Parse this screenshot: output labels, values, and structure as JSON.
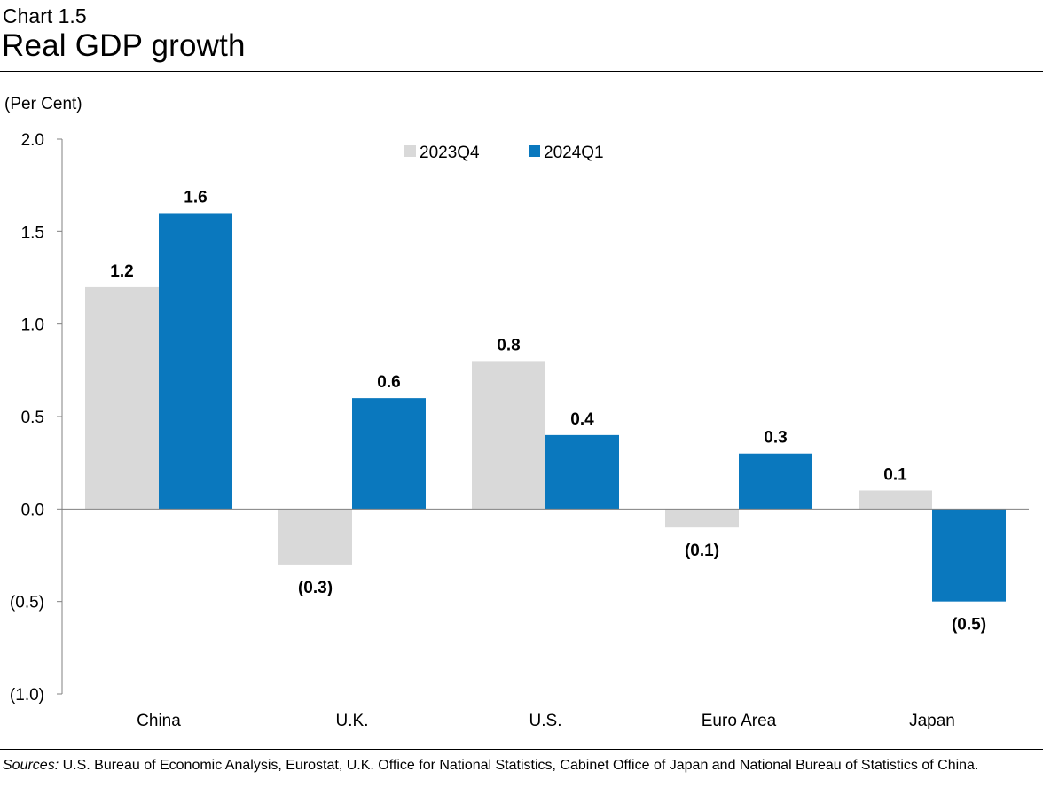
{
  "header": {
    "chart_label": "Chart 1.5",
    "title": "Real GDP growth"
  },
  "footer": {
    "sources_prefix": "Sources:",
    "sources_text": " U.S. Bureau of Economic Analysis, Eurostat, U.K. Office for National Statistics, Cabinet Office of Japan and National Bureau of Statistics of China."
  },
  "chart_data": {
    "type": "bar",
    "title": "Real GDP growth",
    "ylabel": "(Per Cent)",
    "xlabel": "",
    "categories": [
      "China",
      "U.K.",
      "U.S.",
      "Euro Area",
      "Japan"
    ],
    "series": [
      {
        "name": "2023Q4",
        "color": "#d9d9d9",
        "values": [
          1.2,
          -0.3,
          0.8,
          -0.1,
          0.1
        ],
        "labels": [
          "1.2",
          "(0.3)",
          "0.8",
          "(0.1)",
          "0.1"
        ]
      },
      {
        "name": "2024Q1",
        "color": "#0a78be",
        "values": [
          1.6,
          0.6,
          0.4,
          0.3,
          -0.5
        ],
        "labels": [
          "1.6",
          "0.6",
          "0.4",
          "0.3",
          "(0.5)"
        ]
      }
    ],
    "ylim": [
      -1.0,
      2.0
    ],
    "yticks": [
      2.0,
      1.5,
      1.0,
      0.5,
      0.0,
      -0.5,
      -1.0
    ],
    "ytick_labels": [
      "2.0",
      "1.5",
      "1.0",
      "0.5",
      "0.0",
      "(0.5)",
      "(1.0)"
    ],
    "grid": false,
    "legend_position": "top-center"
  }
}
